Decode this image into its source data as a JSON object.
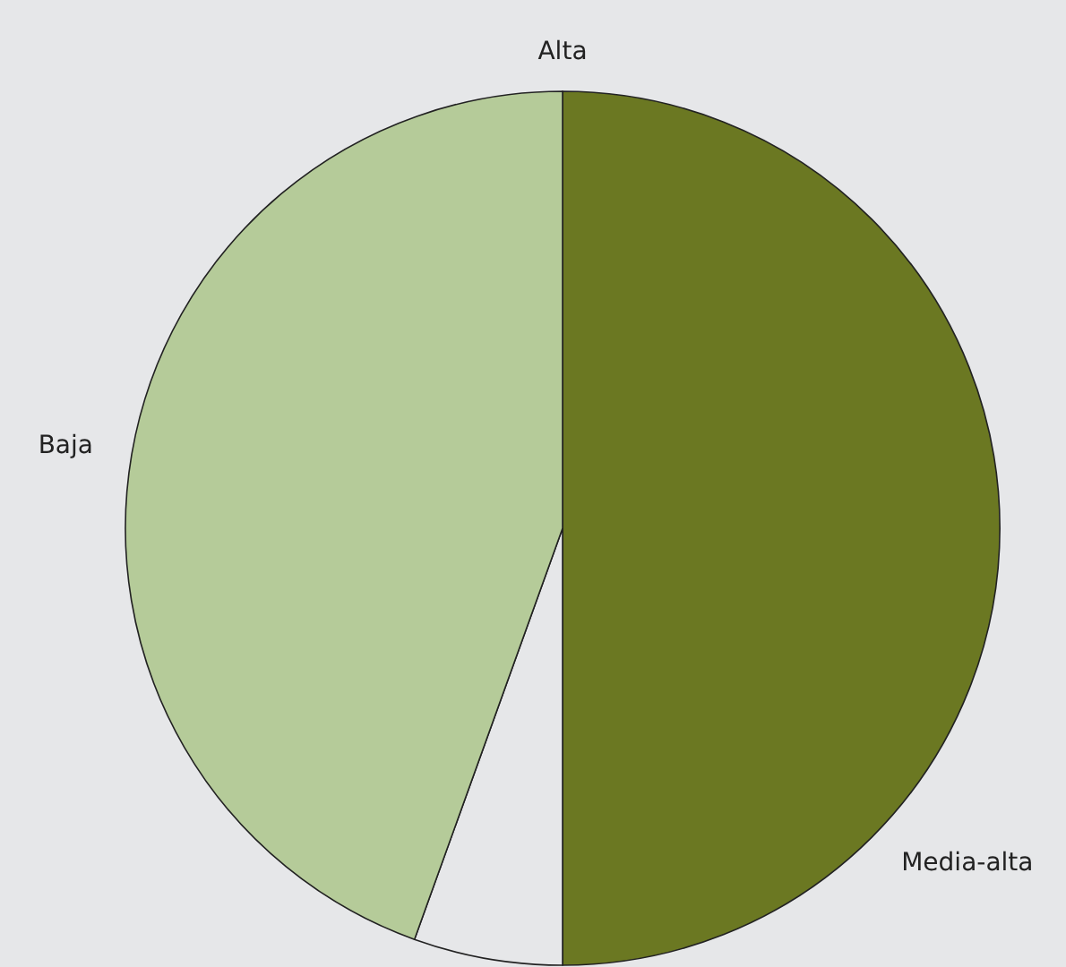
{
  "chart_data": {
    "type": "pie",
    "categories": [
      "Alta",
      "Media-alta",
      null,
      "Baja"
    ],
    "values": [
      0,
      50,
      5.5,
      44.5
    ],
    "colors": [
      "#4e5a18",
      "#6b7822",
      "#e6e7e9",
      "#b5cb99"
    ]
  }
}
